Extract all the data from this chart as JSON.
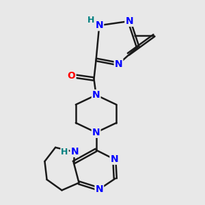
{
  "bg_color": "#e8e8e8",
  "atom_colors": {
    "C": "#000000",
    "N": "#0000ff",
    "O": "#ff0000",
    "H": "#008080"
  },
  "bond_color": "#1a1a1a",
  "bond_width": 1.8,
  "font_size_atom": 10,
  "font_size_H": 9
}
